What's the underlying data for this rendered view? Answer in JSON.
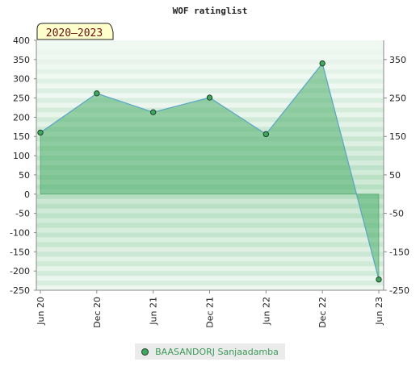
{
  "chart_data": {
    "type": "area",
    "title": "WOF ratinglist",
    "period_badge": "2020–2023",
    "x": [
      "Jun 20",
      "Dec 20",
      "Jun 21",
      "Dec 21",
      "Jun 22",
      "Dec 22",
      "Jun 23"
    ],
    "series": [
      {
        "name": "BAASANDORJ Sanjaadamba",
        "values": [
          160,
          262,
          213,
          251,
          156,
          340,
          -222
        ]
      }
    ],
    "y_left": {
      "range": [
        -250,
        400
      ],
      "ticks": [
        400,
        350,
        300,
        250,
        200,
        150,
        100,
        50,
        0,
        -50,
        -100,
        -150,
        -200,
        -250
      ]
    },
    "y_right": {
      "range": [
        -250,
        400
      ],
      "ticks": [
        350,
        250,
        150,
        50,
        -50,
        -150,
        -250
      ]
    },
    "xlabel": "",
    "ylabel": "",
    "grid": true,
    "legend_position": "bottom",
    "colors": {
      "fill": "#3fa85f",
      "line": "#5aa4c8",
      "marker": "#3fa85f",
      "marker_edge": "#1e3e26",
      "band_light": "#eef7f0",
      "band_dark": "#bfe2c9"
    }
  }
}
